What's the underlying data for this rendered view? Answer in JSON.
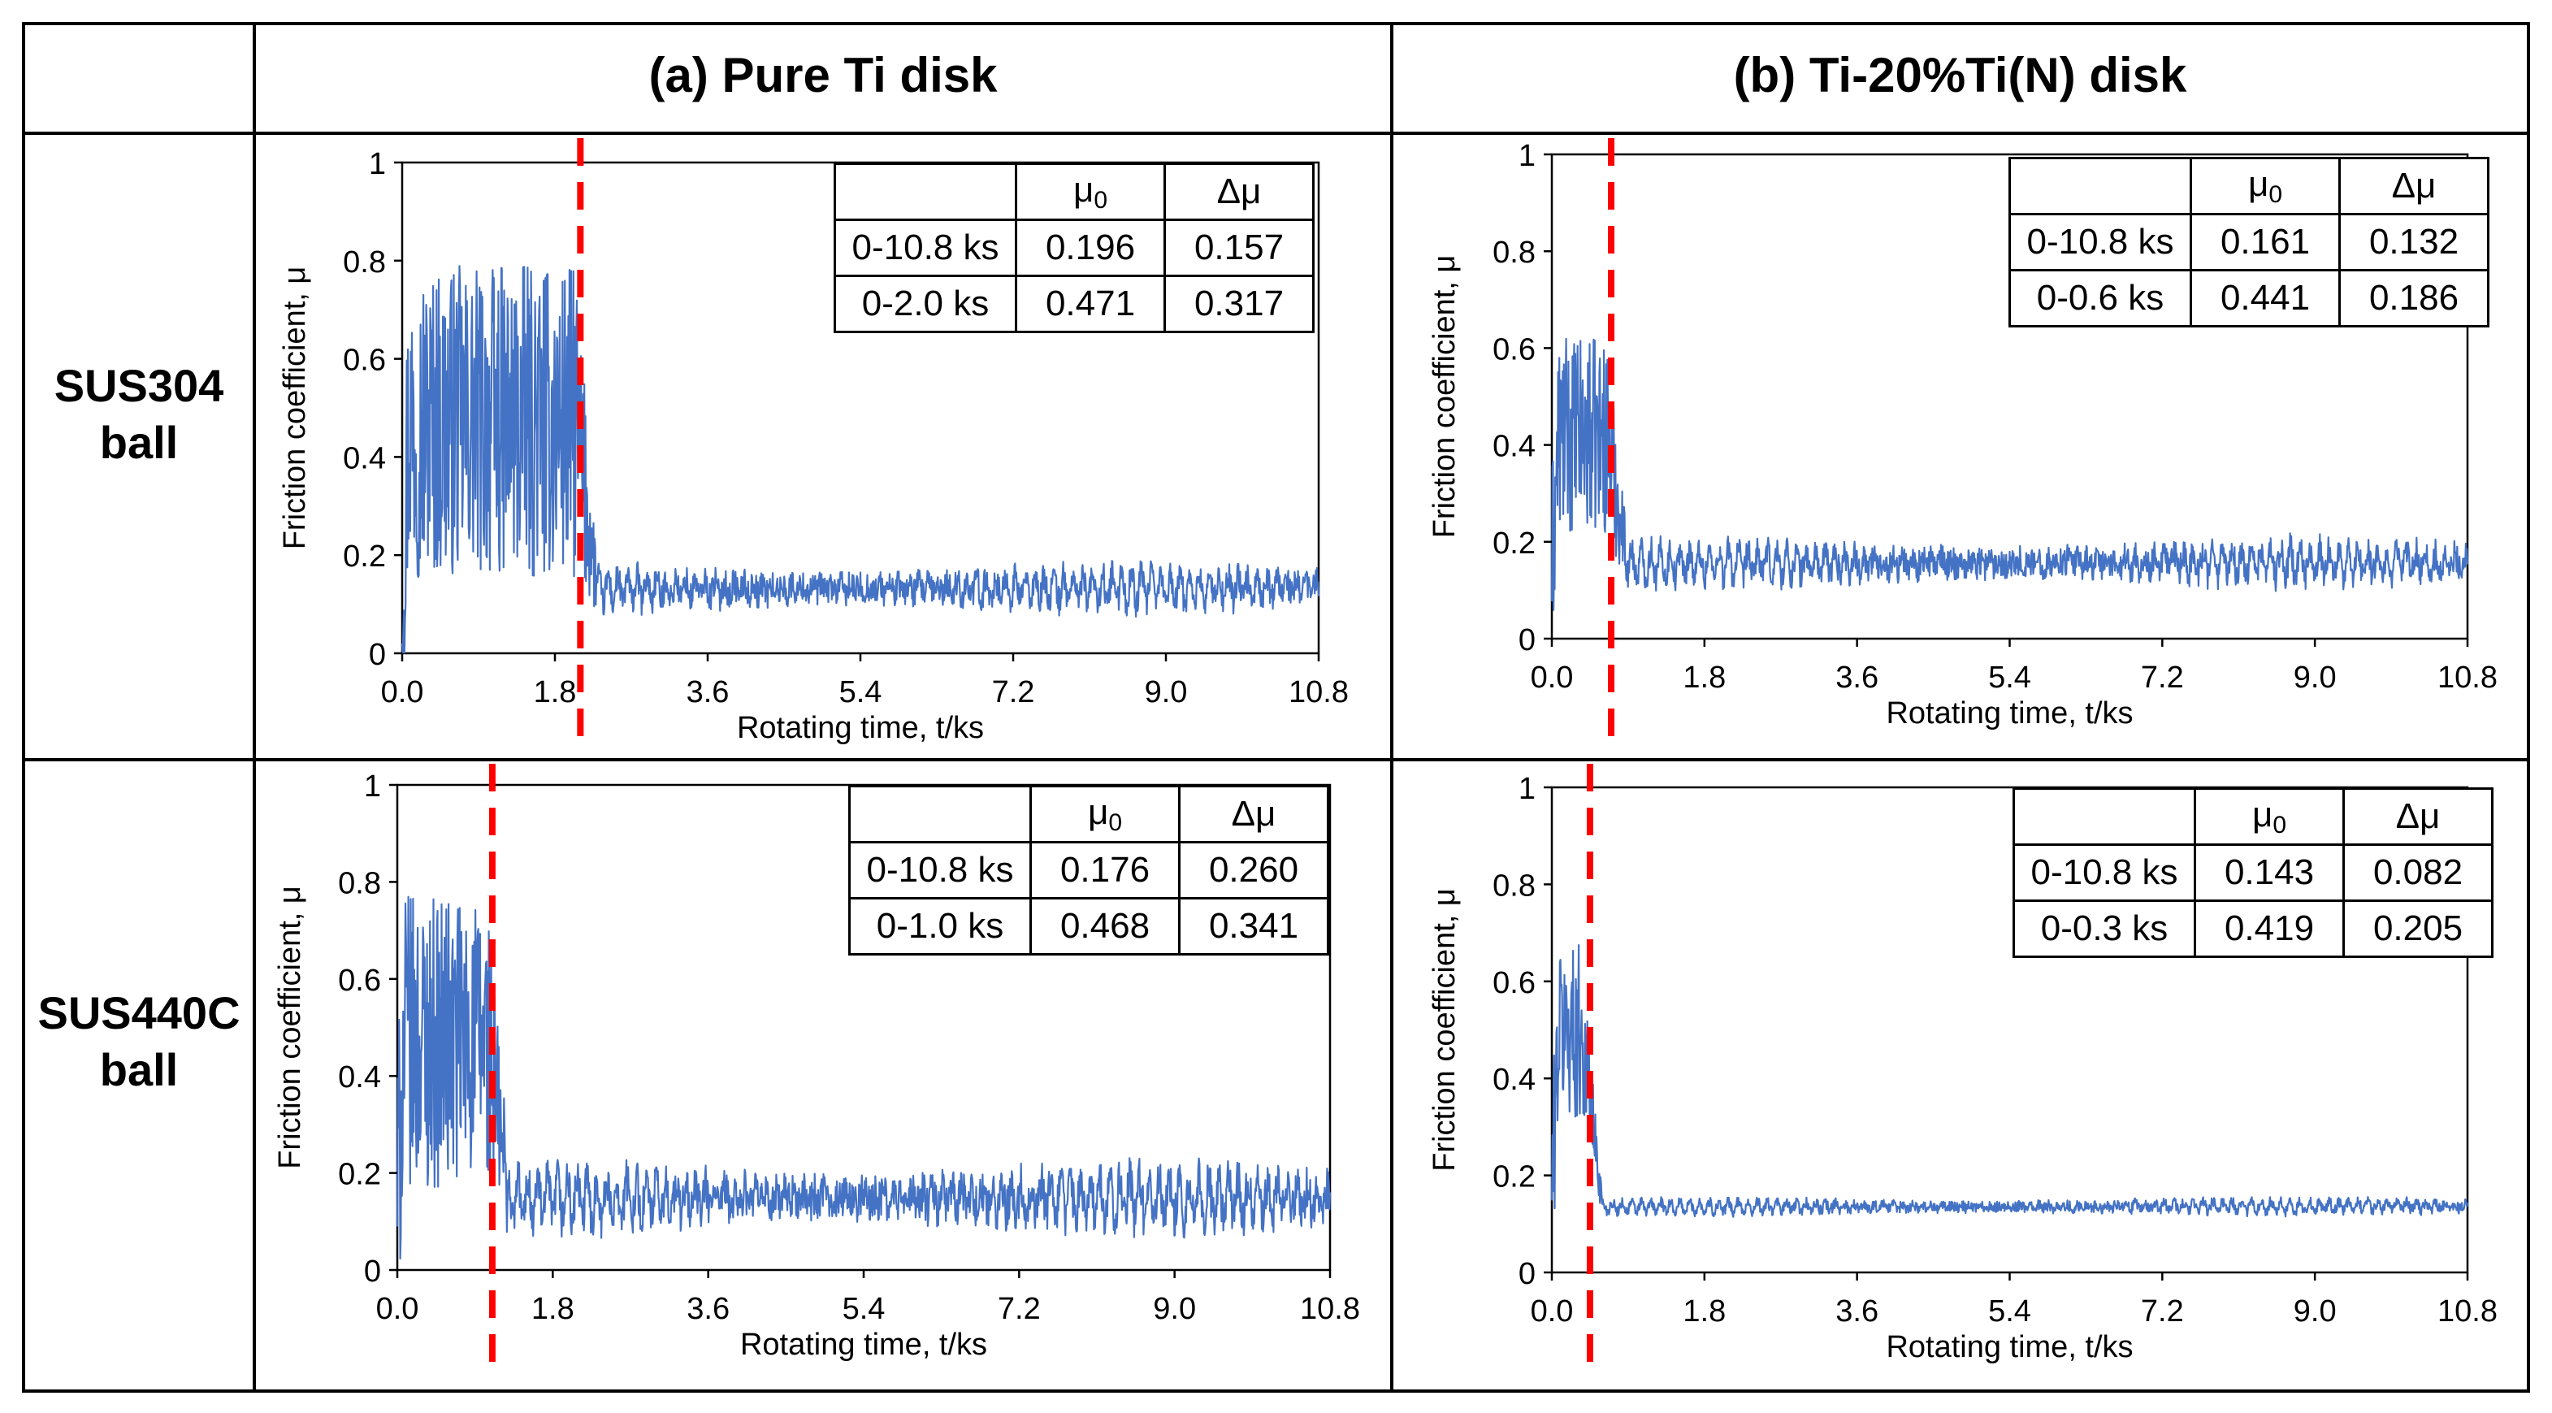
{
  "columns": {
    "a": "(a) Pure Ti disk",
    "b": "(b) Ti-20%Ti(N) disk"
  },
  "rows": {
    "sus304": [
      "SUS304",
      "ball"
    ],
    "sus440c": [
      "SUS440C",
      "ball"
    ]
  },
  "table_header": {
    "blank": "",
    "mu0": "μ",
    "mu0_sub": "0",
    "dmu": "Δμ"
  },
  "chart_data": [
    {
      "id": "a_sus304",
      "type": "line",
      "column": "(a) Pure Ti disk",
      "row": "SUS304 ball",
      "xlabel": "Rotating time, t/ks",
      "ylabel": "Friction coefficient, μ",
      "xlim": [
        0,
        10.8
      ],
      "ylim": [
        0,
        1
      ],
      "xticks": [
        "0.0",
        "1.8",
        "3.6",
        "5.4",
        "7.2",
        "9.0",
        "10.8"
      ],
      "yticks": [
        "0",
        "0.2",
        "0.4",
        "0.6",
        "0.8",
        "1"
      ],
      "series_color": "#4472C4",
      "marker_color": "#FF0000",
      "transition_ks": 2.1,
      "signal": {
        "early_end_ks": 2.05,
        "early_mean": 0.47,
        "early_amp": 0.32,
        "late_mean": 0.13,
        "late_amp": 0.055
      },
      "table": [
        {
          "range": "0-10.8 ks",
          "mu0": "0.196",
          "dmu": "0.157"
        },
        {
          "range": "0-2.0 ks",
          "mu0": "0.471",
          "dmu": "0.317"
        }
      ]
    },
    {
      "id": "b_sus304",
      "type": "line",
      "column": "(b) Ti-20%Ti(N) disk",
      "row": "SUS304 ball",
      "xlabel": "Rotating time, t/ks",
      "ylabel": "Friction coefficient, μ",
      "xlim": [
        0,
        10.8
      ],
      "ylim": [
        0,
        1
      ],
      "xticks": [
        "0.0",
        "1.8",
        "3.6",
        "5.4",
        "7.2",
        "9.0",
        "10.8"
      ],
      "yticks": [
        "0",
        "0.2",
        "0.4",
        "0.6",
        "0.8",
        "1"
      ],
      "series_color": "#4472C4",
      "marker_color": "#FF0000",
      "transition_ks": 0.7,
      "signal": {
        "early_end_ks": 0.65,
        "early_mean": 0.42,
        "early_amp": 0.2,
        "late_mean": 0.155,
        "late_amp": 0.055
      },
      "table": [
        {
          "range": "0-10.8 ks",
          "mu0": "0.161",
          "dmu": "0.132"
        },
        {
          "range": "0-0.6 ks",
          "mu0": "0.441",
          "dmu": "0.186"
        }
      ]
    },
    {
      "id": "a_sus440c",
      "type": "line",
      "column": "(a) Pure Ti disk",
      "row": "SUS440C ball",
      "xlabel": "Rotating time, t/ks",
      "ylabel": "Friction coefficient, μ",
      "xlim": [
        0,
        10.8
      ],
      "ylim": [
        0,
        1
      ],
      "xticks": [
        "0.0",
        "1.8",
        "3.6",
        "5.4",
        "7.2",
        "9.0",
        "10.8"
      ],
      "yticks": [
        "0",
        "0.2",
        "0.4",
        "0.6",
        "0.8",
        "1"
      ],
      "series_color": "#4472C4",
      "marker_color": "#FF0000",
      "transition_ks": 1.1,
      "signal": {
        "early_end_ks": 1.05,
        "early_mean": 0.47,
        "early_amp": 0.3,
        "late_mean": 0.145,
        "late_amp": 0.08
      },
      "table": [
        {
          "range": "0-10.8 ks",
          "mu0": "0.176",
          "dmu": "0.260"
        },
        {
          "range": "0-1.0 ks",
          "mu0": "0.468",
          "dmu": "0.341"
        }
      ]
    },
    {
      "id": "b_sus440c",
      "type": "line",
      "column": "(b) Ti-20%Ti(N) disk",
      "row": "SUS440C ball",
      "xlabel": "Rotating time, t/ks",
      "ylabel": "Friction coefficient, μ",
      "xlim": [
        0,
        10.8
      ],
      "ylim": [
        0,
        1
      ],
      "xticks": [
        "0.0",
        "1.8",
        "3.6",
        "5.4",
        "7.2",
        "9.0",
        "10.8"
      ],
      "yticks": [
        "0",
        "0.2",
        "0.4",
        "0.6",
        "0.8",
        "1"
      ],
      "series_color": "#4472C4",
      "marker_color": "#FF0000",
      "transition_ks": 0.45,
      "signal": {
        "early_end_ks": 0.35,
        "early_mean": 0.5,
        "early_amp": 0.18,
        "late_mean": 0.135,
        "late_amp": 0.02
      },
      "table": [
        {
          "range": "0-10.8 ks",
          "mu0": "0.143",
          "dmu": "0.082"
        },
        {
          "range": "0-0.3 ks",
          "mu0": "0.419",
          "dmu": "0.205"
        }
      ]
    }
  ]
}
